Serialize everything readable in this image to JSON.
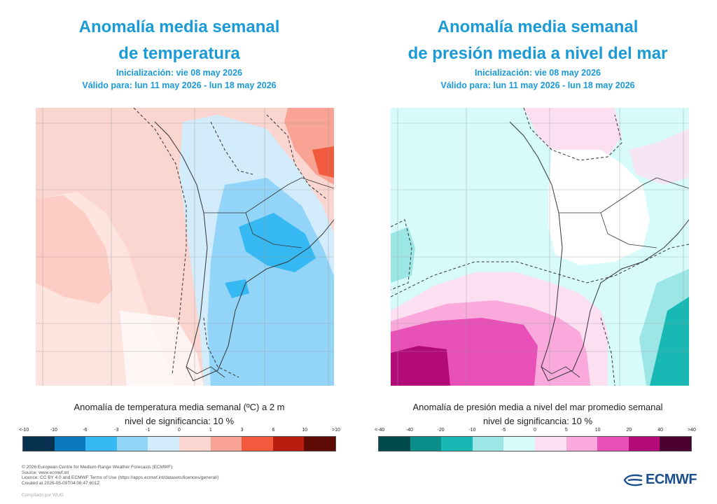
{
  "left": {
    "title_line1": "Anomalía media semanal",
    "title_line2": "de temperatura",
    "init": "Inicialización: vie 08 may 2026",
    "valid": "Válido para: lun 11 may 2026 - lun 18 may 2026",
    "caption_line1": "Anomalía de temperatura media semanal (ºC) a 2 m",
    "caption_line2": "nivel de significancia: 10 %"
  },
  "right": {
    "title_line1": "Anomalía media semanal",
    "title_line2": "de presión media a nivel del mar",
    "init": "Inicialización: vie 08 may 2026",
    "valid": "Válido para: lun 11 may 2026 - lun 18 may 2026",
    "caption_line1": "Anomalía de presión media a nivel del mar promedio semanal",
    "caption_line2": "nivel de significancia: 10 %"
  },
  "footer": {
    "line1": "© 2026 European Centre for Medium-Range Weather Forecasts (ECMWF)",
    "line2": "Source: www.ecmwf.int",
    "line3": "Licence: CC BY 4.0 and ECMWF Terms of Use (https://apps.ecmwf.int/datasets/licences/general/)",
    "line4": "Created at 2026-05-09T04:06:47.601Z",
    "compiled": "Compilado por WUG"
  },
  "logo": {
    "text": "ECMWF",
    "color": "#1a4f8b"
  },
  "chart_data": [
    {
      "type": "heatmap",
      "title": "Anomalía media semanal de temperatura",
      "legend_title": "Anomalía de temperatura media semanal (ºC) a 2 m",
      "significance": "nivel de significancia: 10 %",
      "colorbar": {
        "ticks": [
          "<-10",
          "-10",
          "-6",
          "-3",
          "-1",
          "0",
          "1",
          "3",
          "6",
          "10",
          ">10"
        ],
        "colors": [
          "#08304f",
          "#0b79bd",
          "#36b9f2",
          "#92d5f8",
          "#d2ecfb",
          "#fbd5d0",
          "#f8a393",
          "#f25a3e",
          "#b91d10",
          "#5e0b06"
        ]
      }
    },
    {
      "type": "heatmap",
      "title": "Anomalía media semanal de presión media a nivel del mar",
      "legend_title": "Anomalía de presión media a nivel del mar promedio semanal",
      "significance": "nivel de significancia: 10 %",
      "colorbar": {
        "ticks": [
          "<-40",
          "-40",
          "-20",
          "-10",
          "-5",
          "0",
          "5",
          "10",
          "20",
          "40",
          ">40"
        ],
        "colors": [
          "#004a4d",
          "#0b8e8a",
          "#18b9b4",
          "#9ce7e5",
          "#d7fbfb",
          "#fce0f1",
          "#f9a9dc",
          "#e84fb7",
          "#b30a7a",
          "#4a0130"
        ]
      }
    }
  ]
}
